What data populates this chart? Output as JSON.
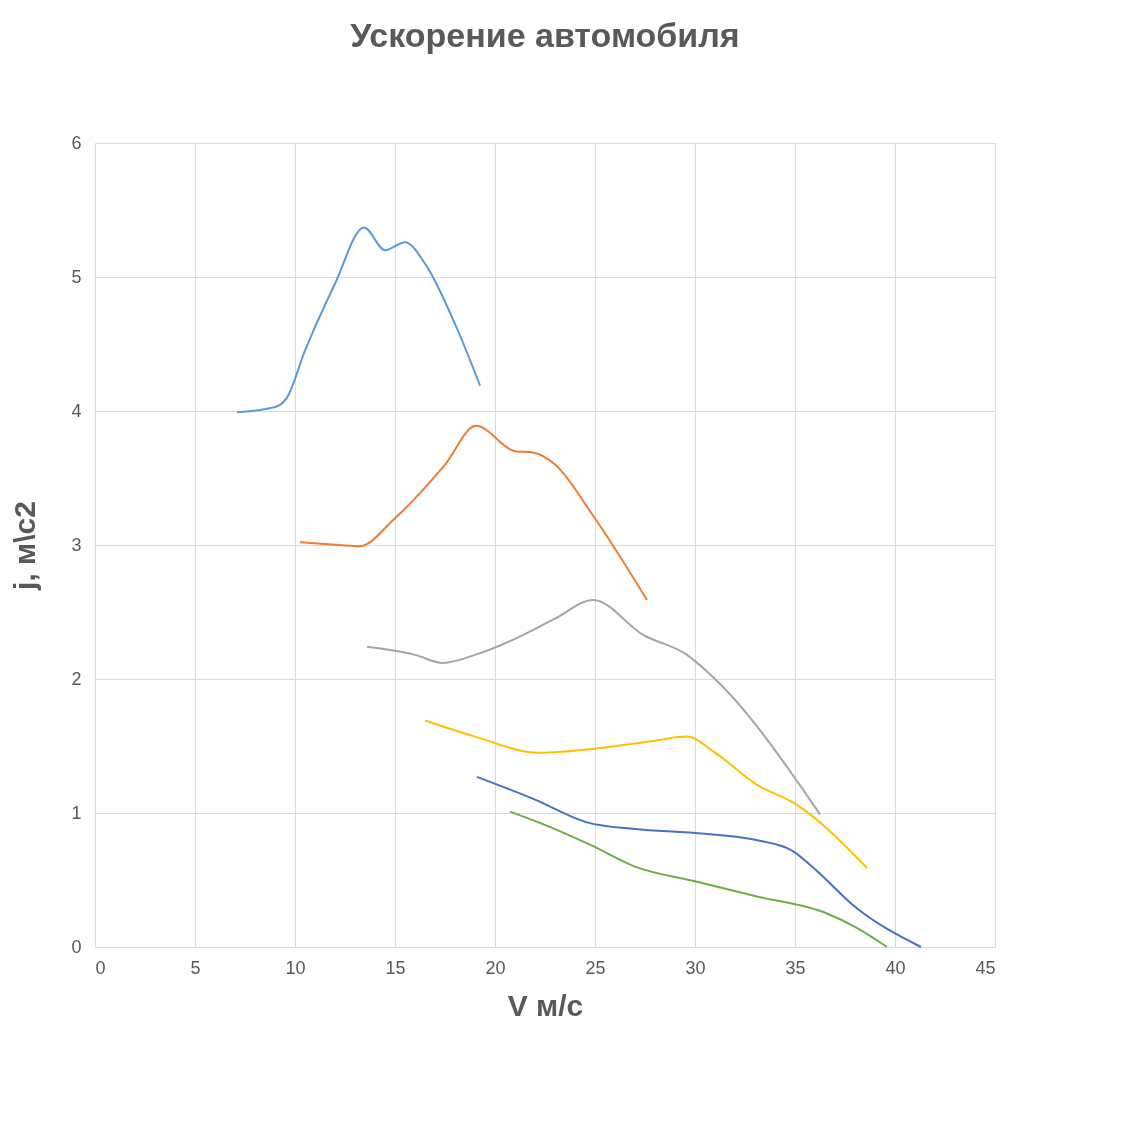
{
  "chart_data": {
    "type": "line",
    "title": "Ускорение автомобиля",
    "xlabel": "V м/с",
    "ylabel": "j, м\\с2",
    "xlim": [
      0,
      45
    ],
    "xticks": [
      0,
      5,
      10,
      15,
      20,
      25,
      30,
      35,
      40,
      45
    ],
    "ylim": [
      0,
      6
    ],
    "yticks": [
      0,
      1,
      2,
      3,
      4,
      5,
      6
    ],
    "grid": true,
    "marker": "none",
    "line_style": "solid",
    "series": [
      {
        "color": "#5b9bd5",
        "x": [
          7.1,
          9,
          9.6,
          10.5,
          12,
          13.45,
          14.5,
          15.5,
          16.5,
          18,
          19.25
        ],
        "values": [
          3.99,
          4.03,
          4.1,
          4.45,
          4.95,
          5.37,
          5.2,
          5.26,
          5.1,
          4.65,
          4.19
        ]
      },
      {
        "color": "#ed7d31",
        "x": [
          10.25,
          12.2,
          13.2,
          15,
          17.5,
          19.05,
          21,
          21.9,
          23,
          24.9,
          27.6
        ],
        "values": [
          3.02,
          3.0,
          2.99,
          3.2,
          3.6,
          3.89,
          3.7,
          3.69,
          3.6,
          3.22,
          2.59
        ]
      },
      {
        "color": "#a5a5a5",
        "x": [
          13.6,
          16,
          17.4,
          19,
          21,
          23,
          24.9,
          27.4,
          29.6,
          31,
          36.25
        ],
        "values": [
          2.24,
          2.18,
          2.12,
          2.18,
          2.3,
          2.45,
          2.59,
          2.33,
          2.18,
          2.0,
          0.99
        ]
      },
      {
        "color": "#ffc000",
        "x": [
          16.5,
          19,
          22.2,
          25,
          28,
          29.6,
          31,
          33.1,
          35,
          38.6
        ],
        "values": [
          1.69,
          1.57,
          1.45,
          1.48,
          1.54,
          1.57,
          1.45,
          1.21,
          1.07,
          0.59
        ]
      },
      {
        "color": "#4472c4",
        "x": [
          19.1,
          22,
          24.6,
          27,
          30,
          33,
          34.85,
          36,
          38,
          41.3
        ],
        "values": [
          1.27,
          1.1,
          0.93,
          0.88,
          0.85,
          0.8,
          0.72,
          0.58,
          0.3,
          0
        ]
      },
      {
        "color": "#70ad47",
        "x": [
          20.75,
          23,
          24.8,
          27,
          30,
          33,
          36.6,
          38,
          39.6
        ],
        "values": [
          1.01,
          0.88,
          0.76,
          0.6,
          0.49,
          0.38,
          0.25,
          0.15,
          0
        ]
      }
    ]
  }
}
